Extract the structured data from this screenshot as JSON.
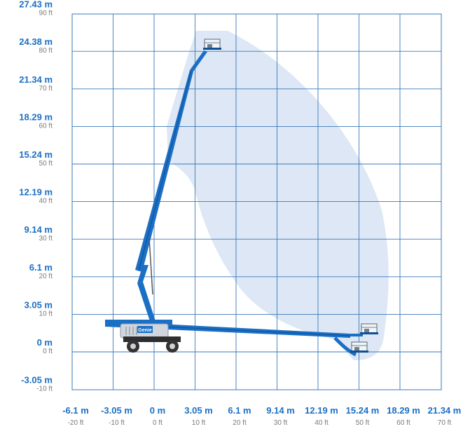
{
  "colors": {
    "grid": "#3a78b8",
    "envelope": "#dde7f5",
    "boom": "#1b6fc4",
    "boom_dark": "#0f4f94",
    "metric_label": "#1b6fc4",
    "imperial_label": "#7a7a7a",
    "platform": "#6e7f8e",
    "chassis": "#cfd6dd",
    "tire": "#333333"
  },
  "chart_data": {
    "type": "diagram",
    "x_axis": {
      "ticks": [
        {
          "m": "-6.1 m",
          "ft": "-20 ft",
          "value_ft": -20
        },
        {
          "m": "-3.05 m",
          "ft": "-10 ft",
          "value_ft": -10
        },
        {
          "m": "0 m",
          "ft": "0 ft",
          "value_ft": 0
        },
        {
          "m": "3.05 m",
          "ft": "10 ft",
          "value_ft": 10
        },
        {
          "m": "6.1 m",
          "ft": "20 ft",
          "value_ft": 20
        },
        {
          "m": "9.14 m",
          "ft": "30 ft",
          "value_ft": 30
        },
        {
          "m": "12.19 m",
          "ft": "40 ft",
          "value_ft": 40
        },
        {
          "m": "15.24 m",
          "ft": "50 ft",
          "value_ft": 50
        },
        {
          "m": "18.29 m",
          "ft": "60 ft",
          "value_ft": 60
        },
        {
          "m": "21.34 m",
          "ft": "70 ft",
          "value_ft": 70
        }
      ]
    },
    "y_axis": {
      "ticks": [
        {
          "m": "27.43 m",
          "ft": "90 ft",
          "value_ft": 90
        },
        {
          "m": "24.38 m",
          "ft": "80 ft",
          "value_ft": 80
        },
        {
          "m": "21.34 m",
          "ft": "70 ft",
          "value_ft": 70
        },
        {
          "m": "18.29 m",
          "ft": "60 ft",
          "value_ft": 60
        },
        {
          "m": "15.24 m",
          "ft": "50 ft",
          "value_ft": 50
        },
        {
          "m": "12.19 m",
          "ft": "40 ft",
          "value_ft": 40
        },
        {
          "m": "9.14 m",
          "ft": "30 ft",
          "value_ft": 30
        },
        {
          "m": "6.1 m",
          "ft": "20 ft",
          "value_ft": 20
        },
        {
          "m": "3.05 m",
          "ft": "10 ft",
          "value_ft": 10
        },
        {
          "m": "0 m",
          "ft": "0 ft",
          "value_ft": 0
        },
        {
          "m": "-3.05 m",
          "ft": "-10 ft",
          "value_ft": -10
        }
      ]
    },
    "machine": {
      "brand_label": "Genie"
    }
  }
}
